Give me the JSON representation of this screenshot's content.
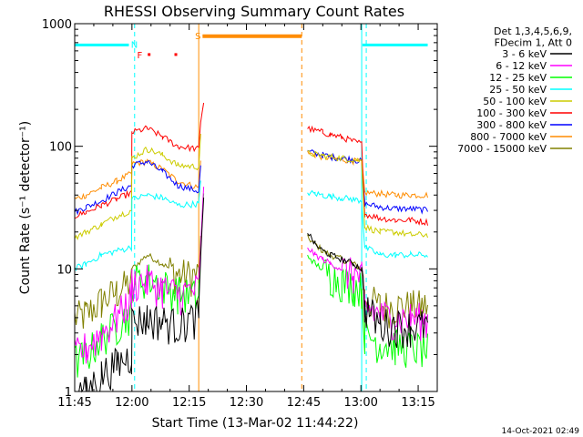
{
  "chart_data": {
    "type": "line",
    "title": "RHESSI Observing Summary Count Rates",
    "xlabel": "Start Time (13-Mar-02 11:44:22)",
    "ylabel": "Count Rate (s⁻¹ detector⁻¹)",
    "y_scale": "log",
    "ylim": [
      1,
      1000
    ],
    "xlim_minutes": [
      705,
      800
    ],
    "x_ticks": [
      {
        "minute": 705,
        "label": "11:45"
      },
      {
        "minute": 720,
        "label": "12:00"
      },
      {
        "minute": 735,
        "label": "12:15"
      },
      {
        "minute": 750,
        "label": "12:30"
      },
      {
        "minute": 765,
        "label": "12:45"
      },
      {
        "minute": 780,
        "label": "13:00"
      },
      {
        "minute": 795,
        "label": "13:15"
      }
    ],
    "y_ticks": [
      {
        "value": 1,
        "label": "1"
      },
      {
        "value": 10,
        "label": "10"
      },
      {
        "value": 100,
        "label": "100"
      },
      {
        "value": 1000,
        "label": "1000"
      }
    ],
    "legend": {
      "placement": "top-right",
      "header": [
        "Det 1,3,4,5,6,9,",
        "FDecim 1, Att 0"
      ]
    },
    "series": [
      {
        "name": "3 - 6 keV",
        "color": "#000000",
        "x": [
          705,
          708,
          712,
          716,
          719.9,
          720,
          724,
          728,
          732,
          737.5,
          738,
          738.8,
          764,
          766,
          768,
          770,
          772,
          775,
          778,
          780.2,
          781,
          785,
          789,
          793,
          797.5
        ],
        "y": [
          1.0,
          1.0,
          1.4,
          1.7,
          2.0,
          3.8,
          4.0,
          3.8,
          3.5,
          4.2,
          12,
          40,
          null,
          20,
          16,
          14,
          13,
          12,
          11,
          10,
          5,
          3.6,
          3.5,
          3.4,
          3.5
        ]
      },
      {
        "name": "6 - 12 keV",
        "color": "#ff00ff",
        "x": [
          705,
          708,
          712,
          716,
          719.9,
          720,
          724,
          728,
          732,
          737.5,
          738,
          738.8,
          764,
          766,
          768,
          770,
          772,
          775,
          778,
          780.2,
          781,
          785,
          789,
          793,
          797.5
        ],
        "y": [
          2.0,
          2.3,
          3.0,
          4.0,
          6.0,
          7.8,
          8.0,
          7.0,
          6.2,
          7.0,
          15,
          45,
          null,
          15,
          13,
          12,
          11,
          10,
          9,
          8.5,
          5,
          4.2,
          4.0,
          4.0,
          3.9
        ]
      },
      {
        "name": "12 - 25 keV",
        "color": "#00ff00",
        "x": [
          705,
          708,
          712,
          716,
          719.9,
          720,
          724,
          728,
          732,
          737.5,
          738,
          738.8,
          764,
          766,
          768,
          770,
          772,
          775,
          778,
          780.2,
          781,
          785,
          789,
          793,
          797.5
        ],
        "y": [
          1.8,
          2.0,
          2.8,
          3.5,
          4.5,
          8.0,
          8.5,
          7.5,
          6.5,
          6.0,
          14,
          40,
          null,
          13,
          11,
          10,
          9,
          8,
          7.5,
          7,
          3,
          2.5,
          2.4,
          2.3,
          2.2
        ]
      },
      {
        "name": "25 - 50 keV",
        "color": "#00ffff",
        "x": [
          705,
          708,
          712,
          716,
          719.9,
          720,
          724,
          728,
          732,
          737.5,
          738,
          738.8,
          764,
          766,
          768,
          770,
          772,
          775,
          778,
          780.2,
          781,
          785,
          789,
          793,
          797.5
        ],
        "y": [
          10,
          11,
          13,
          14,
          15,
          37,
          40,
          38,
          33,
          34,
          50,
          null,
          null,
          42,
          41,
          40,
          39,
          38,
          37,
          36,
          15,
          13,
          13,
          13,
          13
        ]
      },
      {
        "name": "50 - 100 keV",
        "color": "#cccc00",
        "x": [
          705,
          708,
          712,
          716,
          719.9,
          720,
          724,
          728,
          732,
          737.5,
          738,
          738.8,
          764,
          766,
          768,
          770,
          772,
          775,
          778,
          780.2,
          781,
          785,
          789,
          793,
          797.5
        ],
        "y": [
          18,
          20,
          23,
          27,
          30,
          80,
          95,
          85,
          70,
          68,
          120,
          null,
          null,
          88,
          86,
          84,
          82,
          80,
          78,
          76,
          22,
          20,
          20,
          19,
          19
        ]
      },
      {
        "name": "100 - 300 keV",
        "color": "#ff0000",
        "x": [
          705,
          708,
          712,
          716,
          719.9,
          720,
          724,
          728,
          732,
          737.5,
          738,
          738.8,
          764,
          766,
          768,
          770,
          772,
          775,
          778,
          780.2,
          781,
          785,
          789,
          793,
          797.5
        ],
        "y": [
          27,
          29,
          33,
          37,
          42,
          130,
          140,
          120,
          100,
          95,
          160,
          230,
          null,
          140,
          135,
          130,
          125,
          118,
          110,
          105,
          28,
          26,
          25,
          25,
          24
        ]
      },
      {
        "name": "300 - 800 keV",
        "color": "#0000ff",
        "x": [
          705,
          708,
          712,
          716,
          719.9,
          720,
          724,
          728,
          732,
          737.5,
          738,
          738.8,
          764,
          766,
          768,
          770,
          772,
          775,
          778,
          780.2,
          781,
          785,
          789,
          793,
          797.5
        ],
        "y": [
          29,
          32,
          36,
          42,
          48,
          70,
          75,
          62,
          48,
          43,
          70,
          null,
          null,
          90,
          88,
          85,
          82,
          80,
          78,
          75,
          34,
          32,
          31,
          31,
          30
        ]
      },
      {
        "name": "800 - 7000 keV",
        "color": "#ff8c00",
        "x": [
          705,
          708,
          712,
          716,
          719.9,
          720,
          724,
          728,
          732,
          737.5,
          738,
          738.8,
          764,
          766,
          768,
          770,
          772,
          775,
          778,
          780.2,
          781,
          785,
          789,
          793,
          797.5
        ],
        "y": [
          37,
          40,
          46,
          52,
          60,
          72,
          75,
          65,
          52,
          46,
          80,
          null,
          null,
          88,
          85,
          82,
          80,
          78,
          76,
          74,
          42,
          41,
          40,
          40,
          40
        ]
      },
      {
        "name": "7000 - 15000 keV",
        "color": "#808000",
        "x": [
          705,
          708,
          712,
          716,
          719.9,
          720,
          724,
          728,
          732,
          737.5,
          738,
          738.8,
          764,
          766,
          768,
          770,
          772,
          775,
          778,
          780.2,
          781,
          785,
          789,
          793,
          797.5
        ],
        "y": [
          4.0,
          4.3,
          5.5,
          6.5,
          8.0,
          10,
          13,
          11,
          9,
          9,
          18,
          null,
          null,
          18,
          16,
          14,
          13,
          12,
          11,
          10,
          6,
          5,
          5,
          5,
          5
        ]
      }
    ],
    "annotations": {
      "night_bars": [
        {
          "label": "",
          "color": "#00ffff",
          "x_start": 705,
          "x_end": 719.2,
          "y": 670
        },
        {
          "label": "",
          "color": "#00ffff",
          "x_start": 780.4,
          "x_end": 797.5,
          "y": 670
        }
      ],
      "markers": [
        {
          "label": "N",
          "color": "#00ffff",
          "x": 720.7,
          "y": 680
        },
        {
          "label": "F",
          "color": "#ff0000",
          "x": 722.3,
          "y": 560
        },
        {
          "label": "S",
          "color": "#ff8c00",
          "x": 737.5,
          "y": 800
        }
      ],
      "saa_bar": {
        "color": "#ff8c00",
        "x_start": 738.5,
        "x_end": 764.5,
        "y": 790
      },
      "flare_dots": {
        "color": "#ff0000",
        "x": [
          724.5,
          731.5
        ],
        "y": 560
      },
      "vertical_lines": [
        {
          "x": 720.7,
          "color": "#00ffff",
          "style": "dashed"
        },
        {
          "x": 737.5,
          "color": "#ff8c00",
          "style": "solid"
        },
        {
          "x": 764.5,
          "color": "#ff8c00",
          "style": "dashed"
        },
        {
          "x": 780.2,
          "color": "#00ffff",
          "style": "solid"
        },
        {
          "x": 781.4,
          "color": "#00ffff",
          "style": "dashed"
        }
      ]
    }
  },
  "footer": {
    "timestamp": "14-Oct-2021 02:49"
  }
}
